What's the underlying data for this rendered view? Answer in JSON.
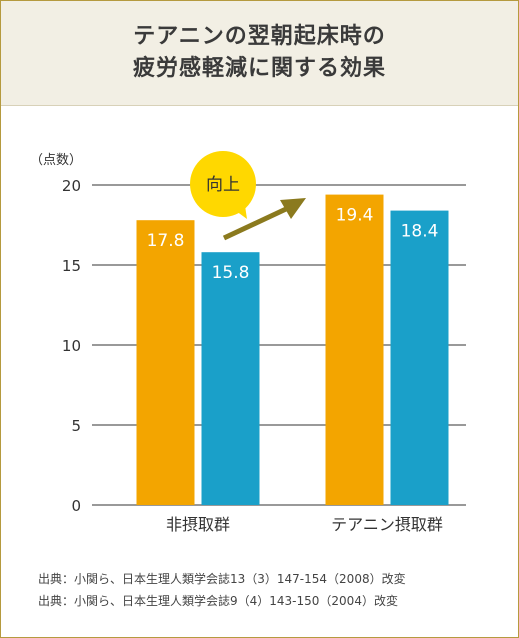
{
  "title": [
    "テアニンの翌朝起床時の",
    "疲労感軽減に関する効果"
  ],
  "chart_data": {
    "type": "bar",
    "unit_label": "（点数）",
    "categories": [
      "非摂取群",
      "テアニン摂取群"
    ],
    "values": [
      [
        17.8,
        15.8
      ],
      [
        19.4,
        18.4
      ]
    ],
    "ylim": [
      0,
      20
    ],
    "yticks": [
      0,
      5,
      10,
      15,
      20
    ],
    "grid": true,
    "colors": [
      "#f3a500",
      "#1aa0c9"
    ],
    "annotation": "向上"
  },
  "colors": {
    "arrow": "#8b7a1e",
    "bubble": "#ffd800",
    "grid": "#333333"
  },
  "sources": [
    "出典：小関ら、日本生理人類学会誌13（3）147-154（2008）改変",
    "出典：小関ら、日本生理人類学会誌9（4）143-150（2004）改変"
  ]
}
